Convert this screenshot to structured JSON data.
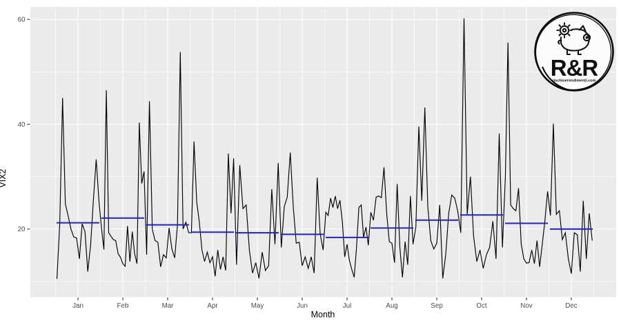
{
  "chart_data": {
    "type": "line",
    "title": "",
    "xlabel": "Month",
    "ylabel": "VIX2",
    "ylim": [
      7.0,
      62.4
    ],
    "grid": "on",
    "y_major_ticks": [
      20,
      40,
      60
    ],
    "y_minor_ticks": [
      10,
      30,
      50
    ],
    "legend": "none",
    "series_info": [
      {
        "name": "daily VIX2",
        "style": "jagged line",
        "color": "#000000"
      },
      {
        "name": "monthly mean",
        "style": "horizontal segment per month",
        "color": "#2222C8"
      }
    ],
    "months": [
      {
        "label": "Jan",
        "mean": 21.2,
        "daily": [
          10.5,
          21.0,
          45.0,
          24.8,
          22.5,
          20.0,
          18.5,
          18.3,
          14.3,
          21.0,
          19.5,
          11.9,
          16.9,
          25.4,
          33.3,
          25.2
        ]
      },
      {
        "label": "Feb",
        "mean": 22.1,
        "daily": [
          20.0,
          16.1,
          46.5,
          19.3,
          18.6,
          18.0,
          17.8,
          15.3,
          14.6,
          13.4,
          12.9,
          20.6,
          13.8,
          19.5,
          15.3,
          13.4,
          40.3,
          28.7,
          31.0
        ]
      },
      {
        "label": "Mar",
        "mean": 20.8,
        "daily": [
          15.1,
          44.4,
          20.0,
          17.8,
          17.5,
          12.8,
          15.1,
          14.5,
          20.2,
          16.2,
          14.5,
          20.8,
          53.8,
          20.0,
          21.3,
          19.3
        ]
      },
      {
        "label": "Apr",
        "mean": 19.4,
        "daily": [
          19.3,
          36.7,
          25.2,
          21.3,
          16.0,
          13.8,
          15.6,
          13.6,
          14.7,
          11.0,
          16.0,
          12.3,
          14.7,
          12.1,
          34.4,
          23.0,
          33.5
        ]
      },
      {
        "label": "May",
        "mean": 19.3,
        "daily": [
          13.2,
          32.2,
          23.9,
          24.6,
          16.0,
          11.6,
          13.6,
          10.6,
          15.6,
          12.1,
          13.0,
          27.6,
          17.1,
          32.6
        ]
      },
      {
        "label": "Jun",
        "mean": 19.0,
        "daily": [
          16.5,
          24.3,
          26.1,
          34.6,
          24.3,
          17.3,
          17.5,
          13.0,
          14.7,
          12.5,
          14.7,
          11.6,
          29.8,
          19.1,
          16.0
        ]
      },
      {
        "label": "Jul",
        "mean": 18.4,
        "daily": [
          23.2,
          22.6,
          25.9,
          24.1,
          26.3,
          23.9,
          25.5,
          21.3,
          14.7,
          17.1,
          14.0,
          12.3,
          10.8,
          16.5,
          24.1,
          24.6,
          18.4,
          20.4,
          16.9
        ]
      },
      {
        "label": "Aug",
        "mean": 20.2,
        "daily": [
          23.2,
          21.7,
          26.1,
          26.3,
          26.0,
          31.8,
          23.0,
          17.6,
          17.3,
          13.6,
          28.6,
          16.5,
          10.8,
          17.6,
          13.2,
          26.3,
          17.1
        ]
      },
      {
        "label": "Sep",
        "mean": 21.7,
        "daily": [
          20.4,
          39.6,
          25.4,
          43.2,
          24.3,
          17.8,
          16.2,
          17.3,
          24.6,
          10.6,
          15.1,
          23.0,
          26.5,
          25.9,
          23.5
        ]
      },
      {
        "label": "Oct",
        "mean": 22.7,
        "daily": [
          19.3,
          60.2,
          22.8,
          30.0,
          18.6,
          13.8,
          16.0,
          12.5,
          15.1,
          16.5,
          21.5,
          14.3,
          38.2,
          16.5
        ]
      },
      {
        "label": "Nov",
        "mean": 21.1,
        "daily": [
          30.0,
          55.6,
          24.6,
          23.9,
          23.5,
          27.8,
          17.1,
          14.3,
          13.5,
          13.6,
          16.0,
          13.4,
          17.8,
          12.8,
          17.1,
          21.7,
          27.2
        ]
      },
      {
        "label": "Dec",
        "mean": 20.0,
        "daily": [
          22.6,
          40.1,
          22.8,
          23.5,
          18.0,
          19.3,
          14.3,
          11.5,
          19.3,
          18.9,
          11.9,
          25.4,
          14.3,
          23.0,
          17.8
        ]
      }
    ]
  },
  "colors": {
    "panel_background": "#EBEBEB",
    "grid": "#FFFFFF",
    "daily_line": "#000000",
    "mean_line": "#2222C8",
    "tick_label": "#4D4D4D",
    "tick_mark": "#333333",
    "axis_title": "#000000"
  },
  "logo": {
    "title": "R&R",
    "subtitle": "rischioerendimenti.com",
    "icon": "piggy-bank-with-gear"
  }
}
